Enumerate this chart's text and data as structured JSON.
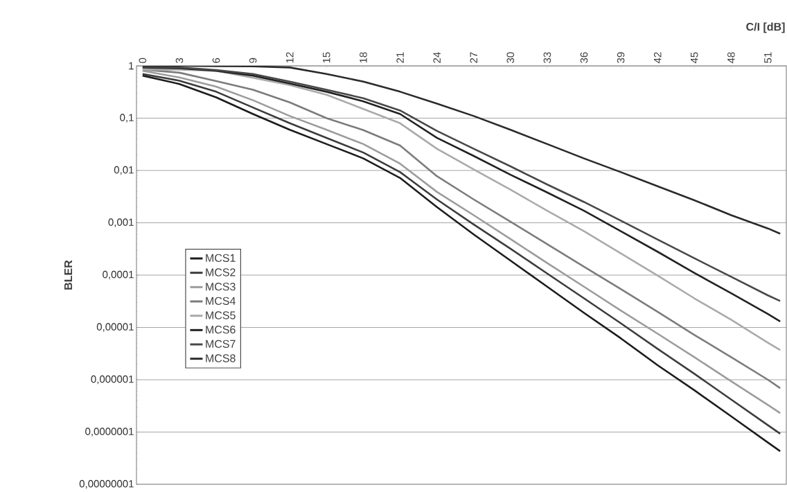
{
  "chart_data": {
    "type": "line",
    "xlabel": "C/I [dB]",
    "ylabel": "BLER",
    "x": [
      0,
      3,
      6,
      9,
      12,
      15,
      18,
      21,
      24,
      27,
      30,
      33,
      36,
      39,
      42,
      45,
      48,
      51,
      52
    ],
    "xlim": [
      -0.5,
      52.5
    ],
    "xticks": [
      0,
      3,
      6,
      9,
      12,
      15,
      18,
      21,
      24,
      27,
      30,
      33,
      36,
      39,
      42,
      45,
      48,
      51
    ],
    "ylim": [
      1e-08,
      1
    ],
    "yticks": [
      {
        "value": 1e-08,
        "label": "0,00000001"
      },
      {
        "value": 1e-07,
        "label": "0,0000001"
      },
      {
        "value": 1e-06,
        "label": "0,000001"
      },
      {
        "value": 1e-05,
        "label": "0,00001"
      },
      {
        "value": 0.0001,
        "label": "0,0001"
      },
      {
        "value": 0.001,
        "label": "0,001"
      },
      {
        "value": 0.01,
        "label": "0,01"
      },
      {
        "value": 0.1,
        "label": "0,1"
      },
      1
    ],
    "log": "y",
    "grid": "y",
    "legend": "left",
    "marker": "none",
    "line_style": "solid",
    "series": [
      {
        "name": "MCS1",
        "color": "#1c1c1c",
        "values": [
          0.65,
          0.45,
          0.25,
          0.12,
          0.06,
          0.032,
          0.017,
          0.0072,
          0.002,
          0.0006,
          0.00019,
          6e-05,
          1.9e-05,
          6.2e-06,
          1.9e-06,
          6.3e-07,
          2e-07,
          6.3e-08,
          4.3e-08
        ]
      },
      {
        "name": "MCS2",
        "color": "#3c3c3c",
        "values": [
          0.7,
          0.52,
          0.32,
          0.16,
          0.08,
          0.042,
          0.022,
          0.0093,
          0.0028,
          0.00093,
          0.00032,
          0.000107,
          3.6e-05,
          1.2e-05,
          3.9e-06,
          1.3e-06,
          4.2e-07,
          1.35e-07,
          9.3e-08
        ]
      },
      {
        "name": "MCS3",
        "color": "#9c9c9c",
        "values": [
          0.8,
          0.6,
          0.4,
          0.22,
          0.11,
          0.06,
          0.032,
          0.0135,
          0.0039,
          0.0014,
          0.00049,
          0.00017,
          6e-05,
          2.1e-05,
          7.6e-06,
          2.7e-06,
          9.4e-07,
          3.3e-07,
          2.3e-07
        ]
      },
      {
        "name": "MCS4",
        "color": "#7c7c7c",
        "values": [
          0.85,
          0.74,
          0.51,
          0.35,
          0.2,
          0.1,
          0.059,
          0.03,
          0.0078,
          0.0028,
          0.00105,
          0.00039,
          0.000145,
          5.4e-05,
          2e-05,
          7.2e-06,
          2.7e-06,
          1e-06,
          6.9e-07
        ]
      },
      {
        "name": "MCS5",
        "color": "#aaaaaa",
        "values": [
          0.85,
          0.85,
          0.8,
          0.59,
          0.43,
          0.28,
          0.15,
          0.08,
          0.026,
          0.0105,
          0.0043,
          0.0017,
          0.00069,
          0.00026,
          9.8e-05,
          3.6e-05,
          1.4e-05,
          5.1e-06,
          3.7e-06
        ]
      },
      {
        "name": "MCS6",
        "color": "#222222",
        "values": [
          0.93,
          0.9,
          0.8,
          0.65,
          0.46,
          0.32,
          0.21,
          0.12,
          0.042,
          0.019,
          0.0083,
          0.0038,
          0.0017,
          0.00069,
          0.00028,
          0.00011,
          4.5e-05,
          1.8e-05,
          1.3e-05
        ]
      },
      {
        "name": "MCS7",
        "color": "#484848",
        "values": [
          0.96,
          0.93,
          0.83,
          0.7,
          0.5,
          0.35,
          0.24,
          0.14,
          0.057,
          0.026,
          0.012,
          0.0054,
          0.0025,
          0.0011,
          0.00048,
          0.00021,
          9.3e-05,
          4.1e-05,
          3.2e-05
        ]
      },
      {
        "name": "MCS8",
        "color": "#2a2a2a",
        "values": [
          1,
          1,
          0.99,
          0.98,
          0.93,
          0.7,
          0.5,
          0.32,
          0.19,
          0.11,
          0.06,
          0.032,
          0.017,
          0.0093,
          0.005,
          0.0027,
          0.0014,
          0.00078,
          0.00062
        ]
      }
    ]
  }
}
